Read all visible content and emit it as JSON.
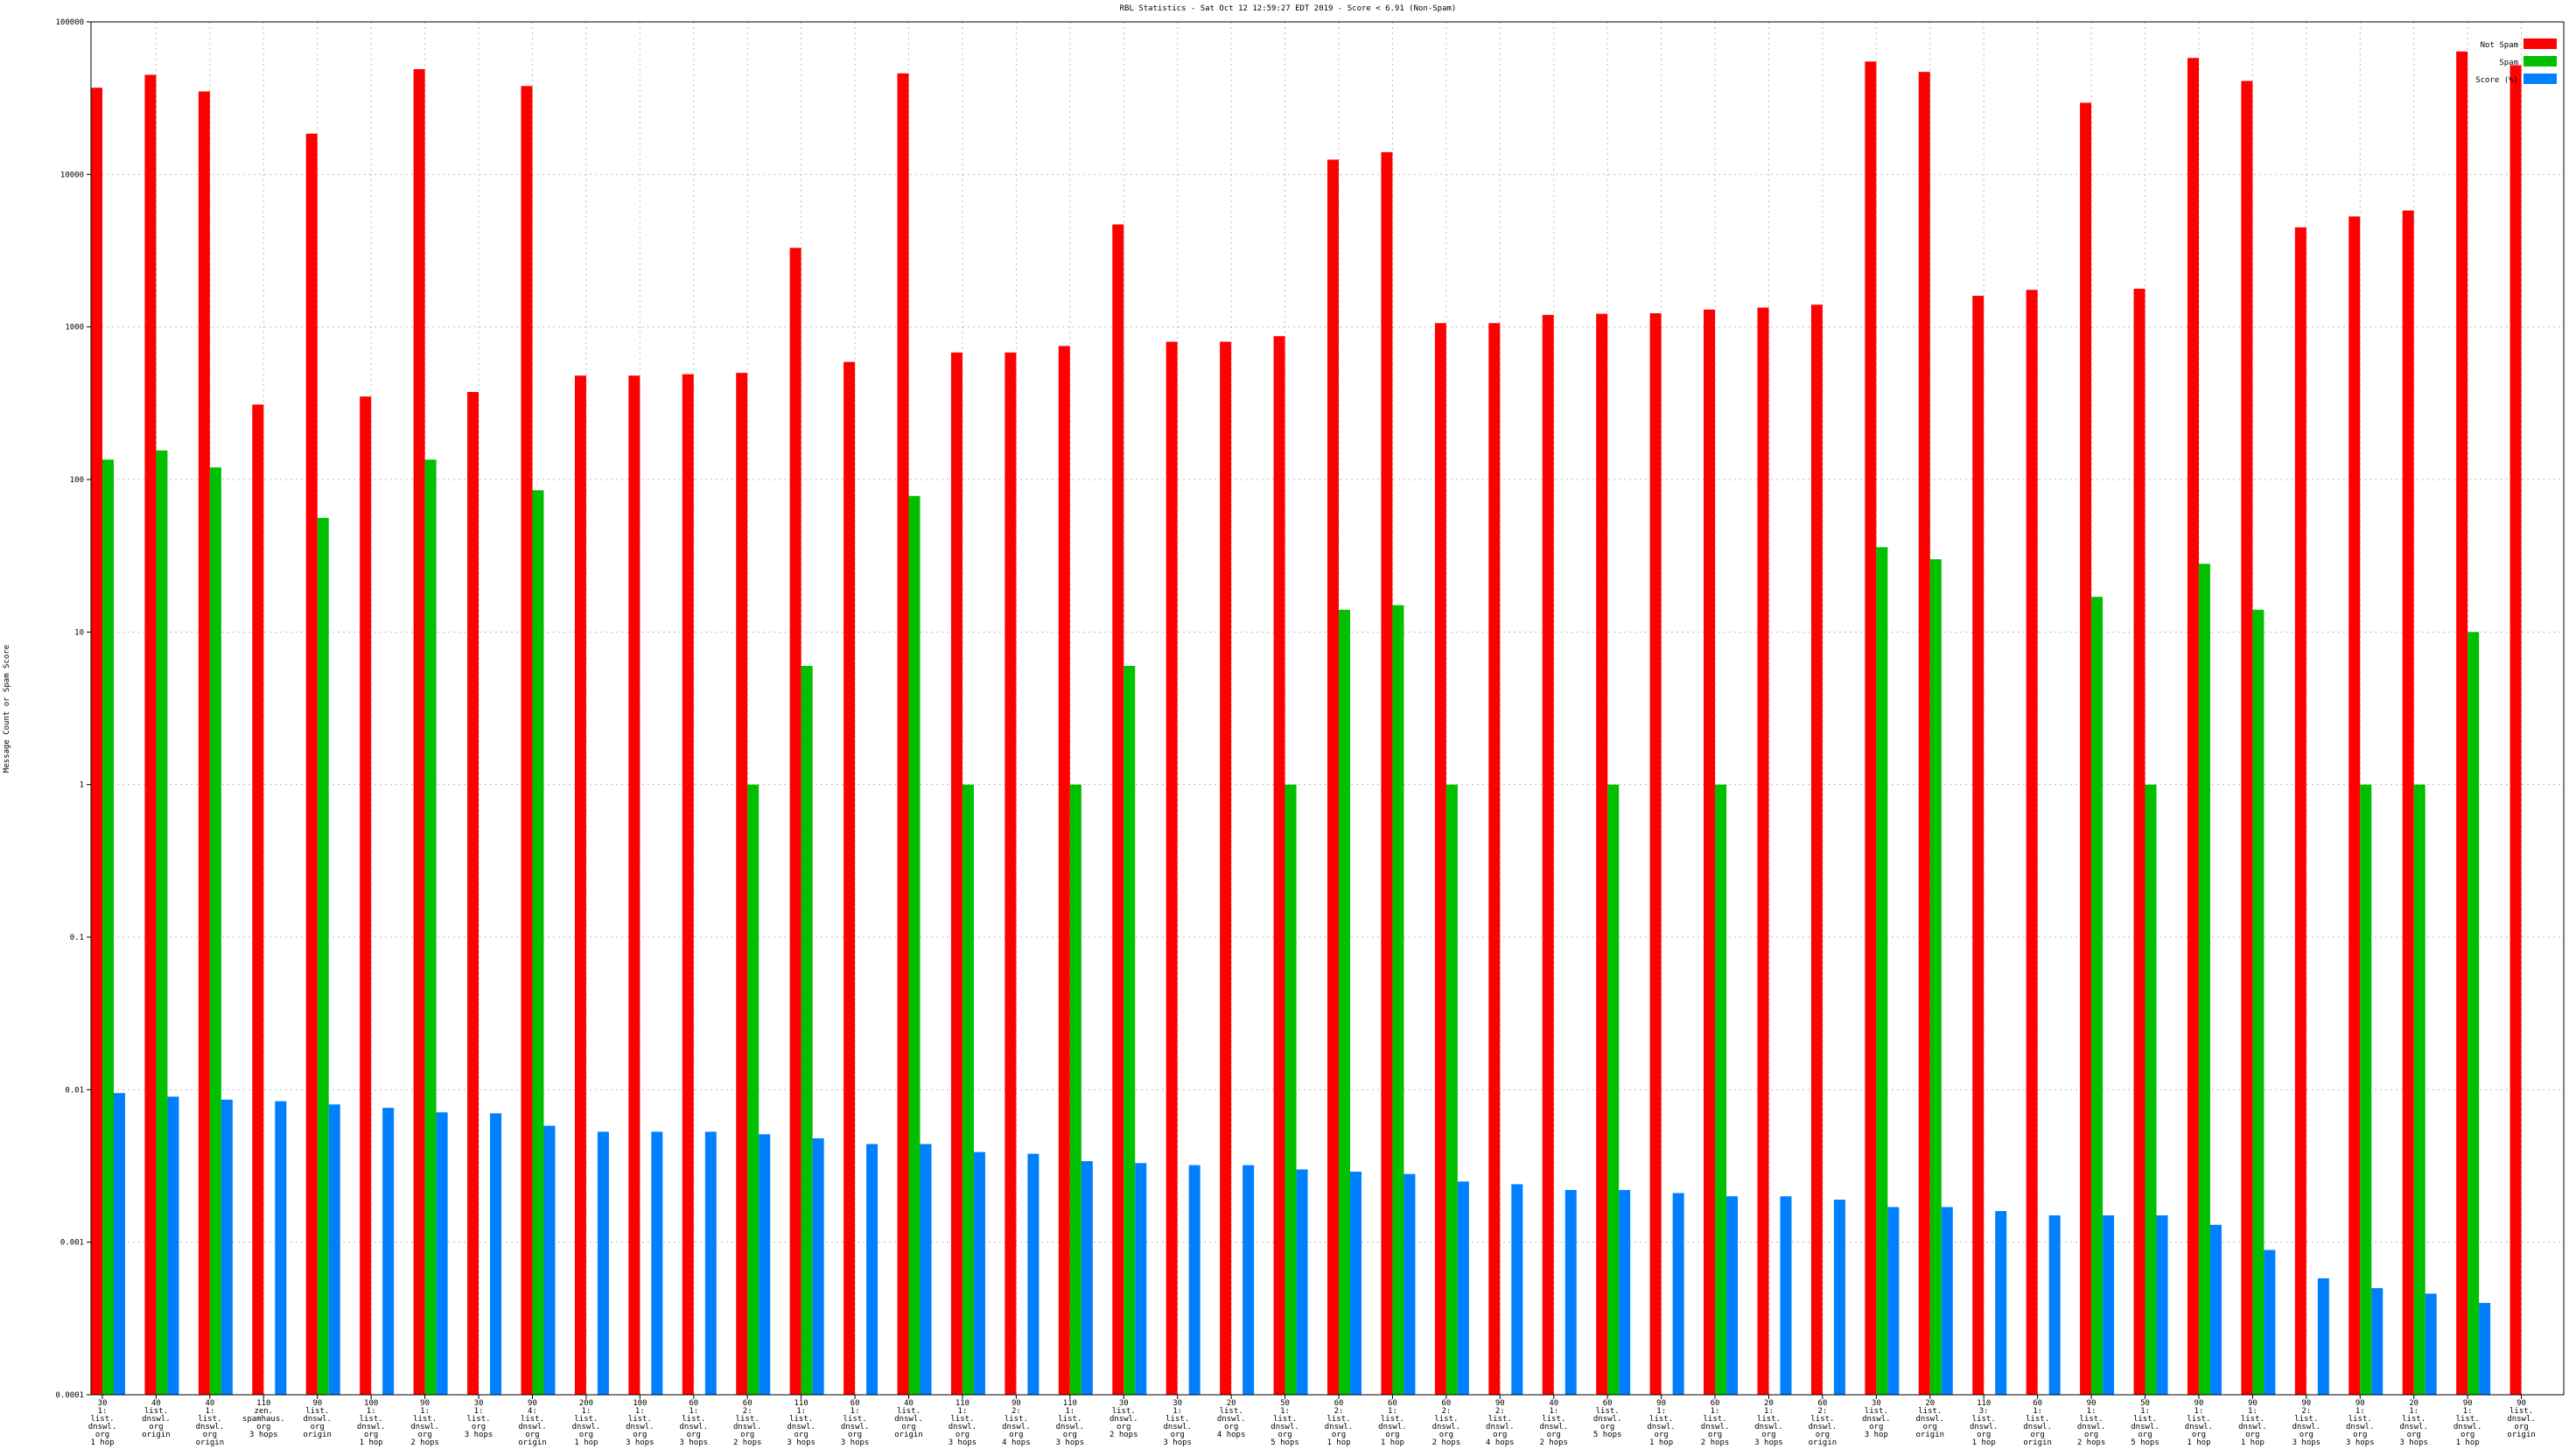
{
  "chart_data": {
    "type": "bar",
    "title": "RBL Statistics - Sat Oct 12 12:59:27 EDT 2019 - Score < 6.91 (Non-Spam)",
    "y_label": "Message Count or Spam Score",
    "log_scale": true,
    "grid": true,
    "legend": "top-right",
    "ylim": [
      0.0001,
      100000
    ],
    "yticks": [
      0.0001,
      0.001,
      0.01,
      0.1,
      1,
      10,
      100,
      1000,
      10000,
      100000
    ],
    "categories": [
      [
        "30",
        "1:",
        "list.",
        "dnswl.",
        "org",
        "1 hop"
      ],
      [
        "40",
        "list.",
        "dnswl.",
        "org",
        "origin"
      ],
      [
        "40",
        "1:",
        "list.",
        "dnswl.",
        "org",
        "origin"
      ],
      [
        "110",
        "zen.",
        "spamhaus.",
        "org",
        "3 hops"
      ],
      [
        "90",
        "list.",
        "dnswl.",
        "org",
        "origin"
      ],
      [
        "100",
        "1:",
        "list.",
        "dnswl.",
        "org",
        "1 hop"
      ],
      [
        "90",
        "1:",
        "list.",
        "dnswl.",
        "org",
        "2 hops"
      ],
      [
        "30",
        "1:",
        "list.",
        "org",
        "3 hops"
      ],
      [
        "90",
        "4:",
        "list.",
        "dnswl.",
        "org",
        "origin"
      ],
      [
        "200",
        "1:",
        "list.",
        "dnswl.",
        "org",
        "1 hop"
      ],
      [
        "100",
        "1:",
        "list.",
        "dnswl.",
        "org",
        "3 hops"
      ],
      [
        "60",
        "1:",
        "list.",
        "dnswl.",
        "org",
        "3 hops"
      ],
      [
        "60",
        "2:",
        "list.",
        "dnswl.",
        "org",
        "2 hops"
      ],
      [
        "110",
        "1:",
        "list.",
        "dnswl.",
        "org",
        "3 hops"
      ],
      [
        "60",
        "1:",
        "list.",
        "dnswl.",
        "org",
        "3 hops"
      ],
      [
        "40",
        "list.",
        "dnswl.",
        "org",
        "origin"
      ],
      [
        "110",
        "1:",
        "list.",
        "dnswl.",
        "org",
        "3 hops"
      ],
      [
        "90",
        "2:",
        "list.",
        "dnswl.",
        "org",
        "4 hops"
      ],
      [
        "110",
        "1:",
        "list.",
        "dnswl.",
        "org",
        "3 hops"
      ],
      [
        "30",
        "list.",
        "dnswl.",
        "org",
        "2 hops"
      ],
      [
        "30",
        "1:",
        "list.",
        "dnswl.",
        "org",
        "3 hops"
      ],
      [
        "20",
        "list.",
        "dnswl.",
        "org",
        "4 hops"
      ],
      [
        "50",
        "1:",
        "list.",
        "dnswl.",
        "org",
        "5 hops"
      ],
      [
        "60",
        "2:",
        "list.",
        "dnswl.",
        "org",
        "1 hop"
      ],
      [
        "60",
        "1:",
        "list.",
        "dnswl.",
        "org",
        "1 hop"
      ],
      [
        "60",
        "2:",
        "list.",
        "dnswl.",
        "org",
        "2 hops"
      ],
      [
        "90",
        "2:",
        "list.",
        "dnswl.",
        "org",
        "4 hops"
      ],
      [
        "40",
        "1:",
        "list.",
        "dnswl.",
        "org",
        "2 hops"
      ],
      [
        "60",
        "list.",
        "dnswl.",
        "org",
        "5 hops"
      ],
      [
        "90",
        "1:",
        "list.",
        "dnswl.",
        "org",
        "1 hop"
      ],
      [
        "60",
        "1:",
        "list.",
        "dnswl.",
        "org",
        "2 hops"
      ],
      [
        "20",
        "1:",
        "list.",
        "dnswl.",
        "org",
        "3 hops"
      ],
      [
        "60",
        "2:",
        "list.",
        "dnswl.",
        "org",
        "origin"
      ],
      [
        "30",
        "list.",
        "dnswl.",
        "org",
        "3 hop"
      ],
      [
        "20",
        "list.",
        "dnswl.",
        "org",
        "origin"
      ],
      [
        "110",
        "3:",
        "list.",
        "dnswl.",
        "org",
        "1 hop"
      ],
      [
        "60",
        "1:",
        "list.",
        "dnswl.",
        "org",
        "origin"
      ],
      [
        "90",
        "1:",
        "list.",
        "dnswl.",
        "org",
        "2 hops"
      ],
      [
        "50",
        "1:",
        "list.",
        "dnswl.",
        "org",
        "5 hops"
      ],
      [
        "90",
        "1:",
        "list.",
        "dnswl.",
        "org",
        "1 hop"
      ],
      [
        "90",
        "1:",
        "list.",
        "dnswl.",
        "org",
        "1 hop"
      ],
      [
        "90",
        "2:",
        "list.",
        "dnswl.",
        "org",
        "3 hops"
      ],
      [
        "90",
        "1:",
        "list.",
        "dnswl.",
        "org",
        "3 hops"
      ],
      [
        "20",
        "1:",
        "list.",
        "dnswl.",
        "org",
        "3 hops"
      ],
      [
        "90",
        "1:",
        "list.",
        "dnswl.",
        "org",
        "1 hop"
      ],
      [
        "90",
        "list.",
        "dnswl.",
        "org",
        "origin"
      ]
    ],
    "series": [
      {
        "name": "Not Spam",
        "color": "#ff0000",
        "values": [
          37000,
          45000,
          35000,
          310,
          18500,
          350,
          49000,
          375,
          38000,
          480,
          480,
          490,
          500,
          3300,
          590,
          46000,
          680,
          680,
          750,
          4700,
          800,
          800,
          870,
          12500,
          14000,
          1060,
          1060,
          1200,
          1220,
          1230,
          1300,
          1340,
          1400,
          55000,
          47000,
          1600,
          1750,
          29500,
          1780,
          58000,
          41000,
          4500,
          5300,
          5800,
          64000,
          52000
        ]
      },
      {
        "name": "Spam",
        "color": "#00c000",
        "values": [
          135,
          155,
          120,
          null,
          56,
          null,
          135,
          null,
          85,
          null,
          null,
          null,
          1,
          6,
          null,
          78,
          1,
          null,
          1,
          6,
          null,
          null,
          1,
          14,
          15,
          1,
          null,
          null,
          1,
          null,
          1,
          null,
          null,
          36,
          30,
          null,
          null,
          17,
          1,
          28,
          14,
          null,
          1,
          1,
          10,
          null
        ]
      },
      {
        "name": "Score (%)",
        "color": "#0080ff",
        "values": [
          0.0095,
          0.009,
          0.0086,
          0.0084,
          0.008,
          0.0076,
          0.0071,
          0.007,
          0.0058,
          0.0053,
          0.0053,
          0.0053,
          0.0051,
          0.0048,
          0.0044,
          0.0044,
          0.0039,
          0.0038,
          0.0034,
          0.0033,
          0.0032,
          0.0032,
          0.003,
          0.0029,
          0.0028,
          0.0025,
          0.0024,
          0.0022,
          0.0022,
          0.0021,
          0.002,
          0.002,
          0.0019,
          0.0017,
          0.0017,
          0.0016,
          0.0015,
          0.0015,
          0.0015,
          0.0013,
          0.00089,
          0.00058,
          0.0005,
          0.00046,
          0.0004,
          null
        ]
      }
    ]
  }
}
